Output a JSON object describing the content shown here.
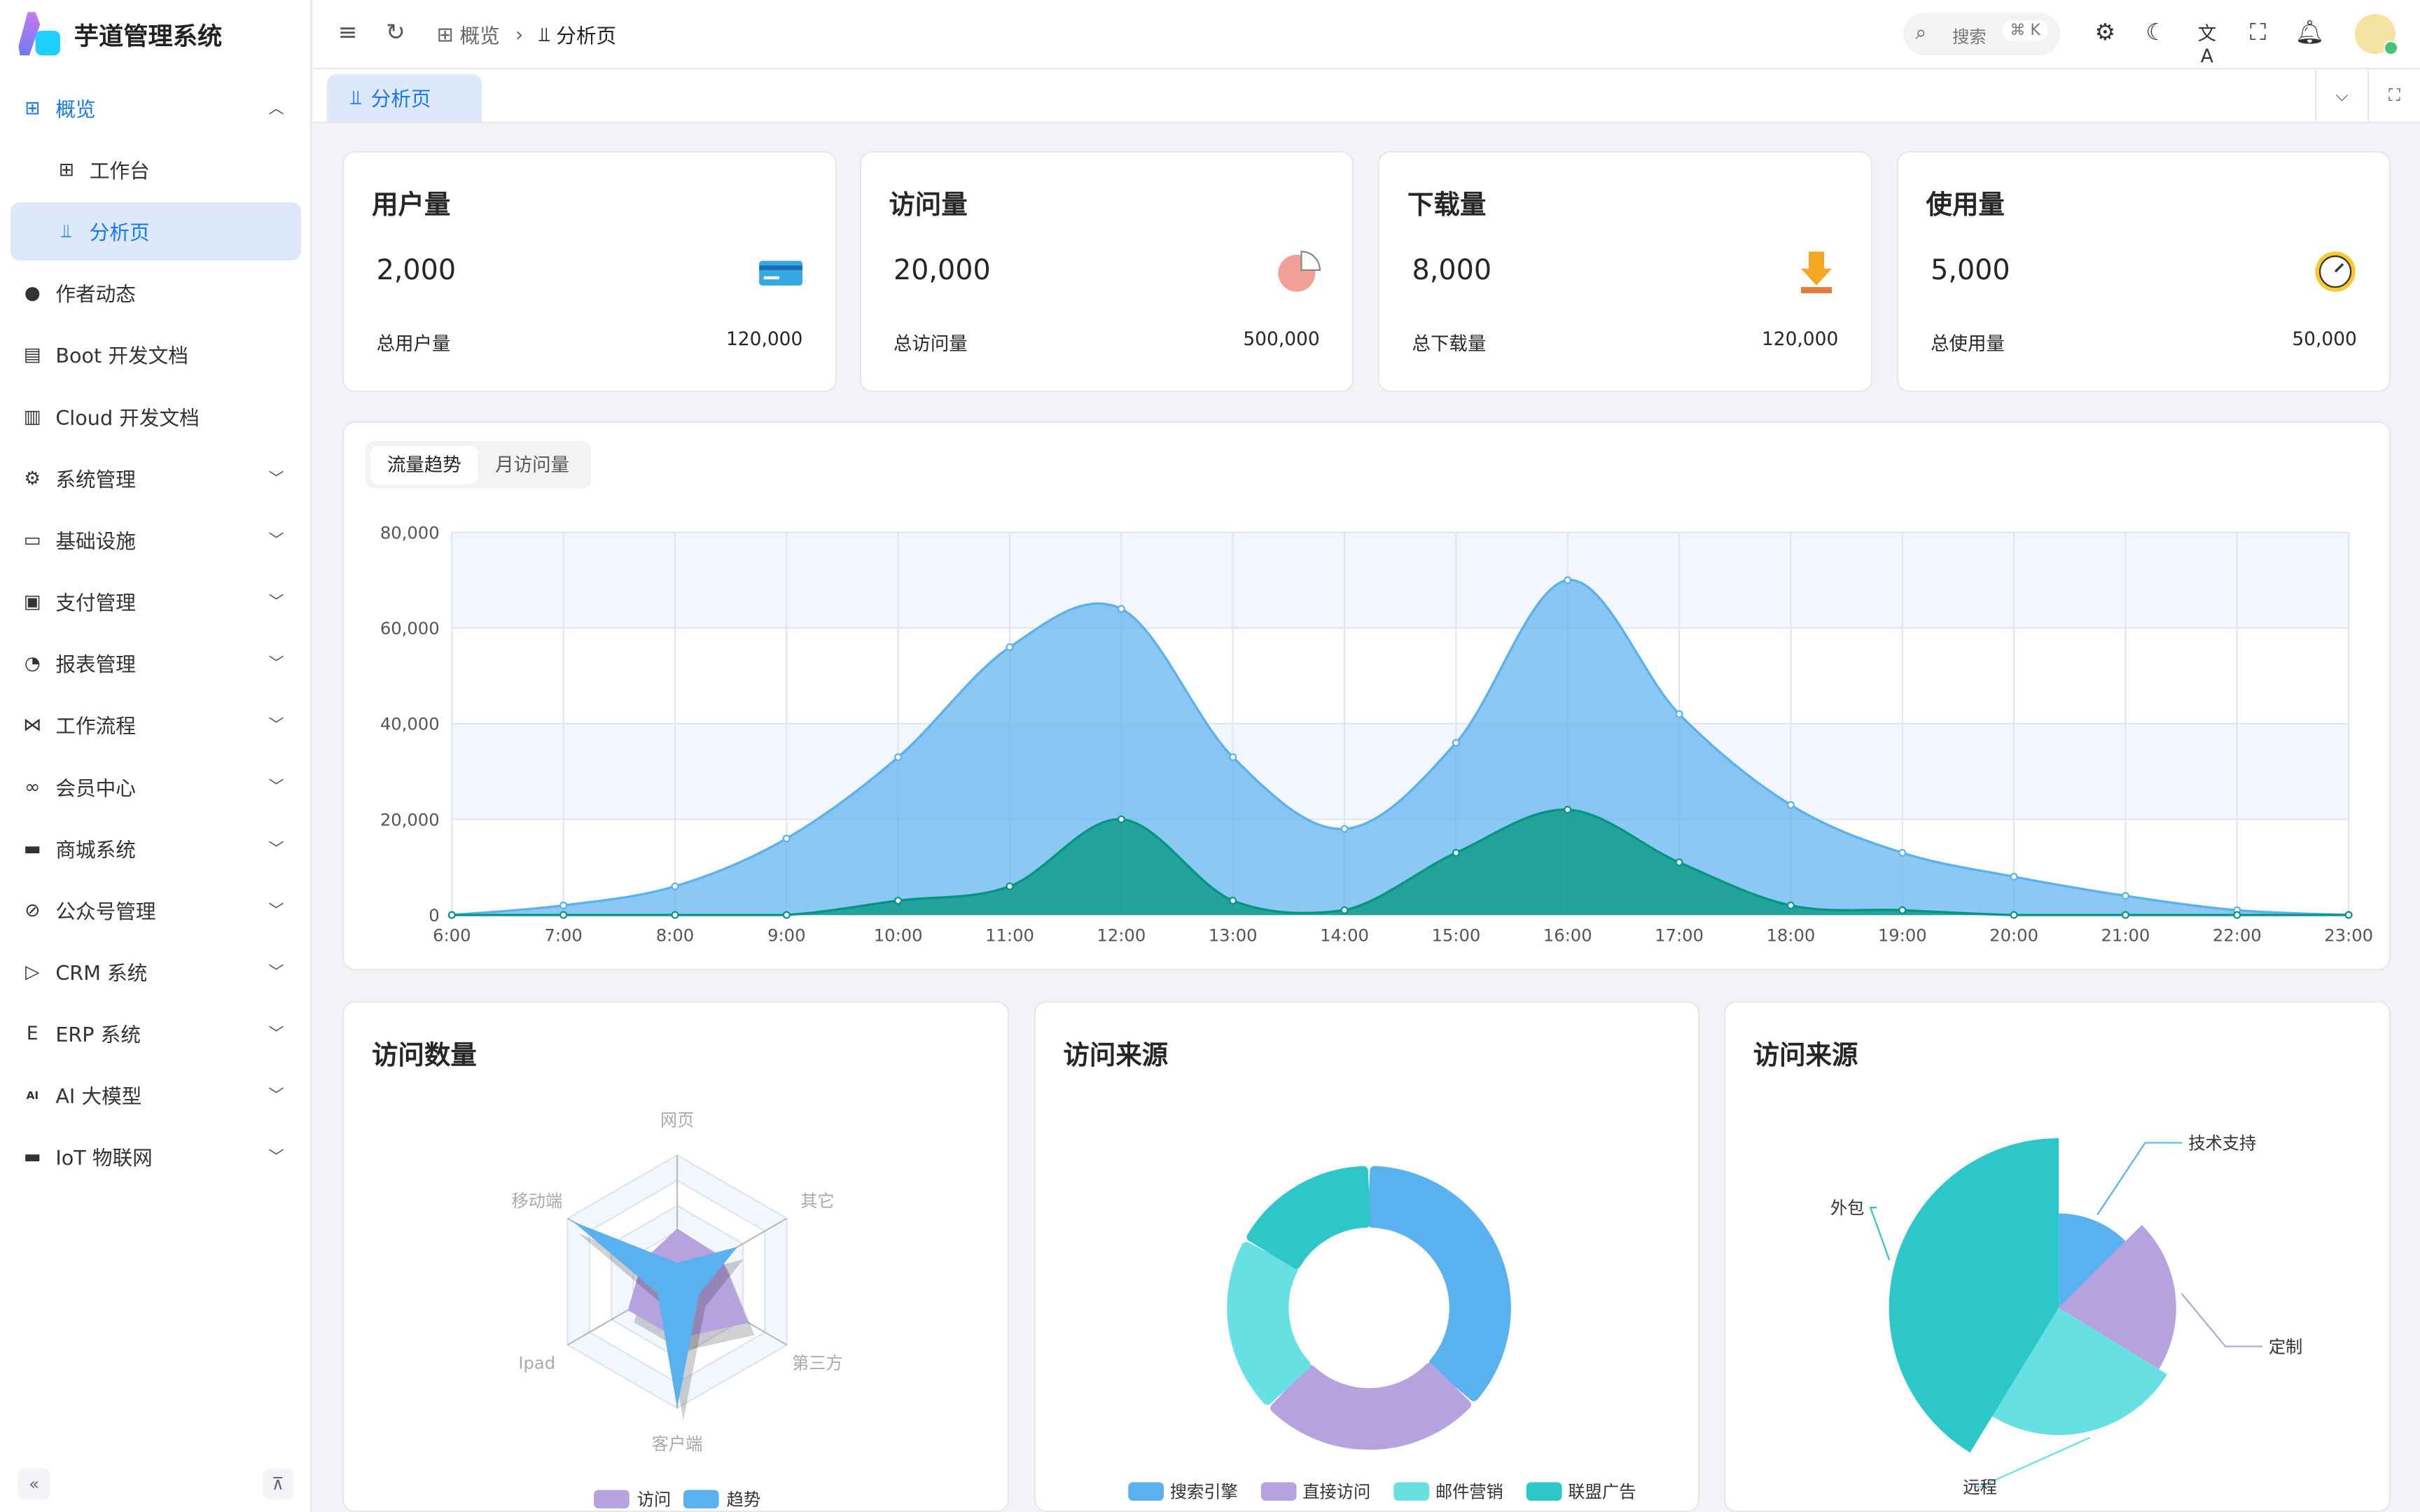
{
  "app": {
    "title": "芋道管理系统"
  },
  "sidebar": {
    "items": [
      {
        "label": "概览",
        "icon": "dashboard-icon",
        "expanded": true
      },
      {
        "label": "工作台",
        "icon": "workspace-icon",
        "sub": true
      },
      {
        "label": "分析页",
        "icon": "chart-icon",
        "sub": true,
        "active": true
      },
      {
        "label": "作者动态",
        "icon": "user-icon"
      },
      {
        "label": "Boot 开发文档",
        "icon": "document-icon"
      },
      {
        "label": "Cloud 开发文档",
        "icon": "documents-icon"
      },
      {
        "label": "系统管理",
        "icon": "gear-icon",
        "chev": true
      },
      {
        "label": "基础设施",
        "icon": "monitor-icon",
        "chev": true
      },
      {
        "label": "支付管理",
        "icon": "payment-icon",
        "chev": true
      },
      {
        "label": "报表管理",
        "icon": "pie-icon",
        "chev": true
      },
      {
        "label": "工作流程",
        "icon": "workflow-icon",
        "chev": true
      },
      {
        "label": "会员中心",
        "icon": "bike-icon",
        "chev": true
      },
      {
        "label": "商城系统",
        "icon": "shop-icon",
        "chev": true
      },
      {
        "label": "公众号管理",
        "icon": "compass-icon",
        "chev": true
      },
      {
        "label": "CRM 系统",
        "icon": "crm-icon",
        "chev": true
      },
      {
        "label": "ERP 系统",
        "icon": "erp-icon",
        "chev": true
      },
      {
        "label": "AI 大模型",
        "icon": "ai-icon",
        "chev": true
      },
      {
        "label": "IoT 物联网",
        "icon": "iot-icon",
        "chev": true
      }
    ]
  },
  "header": {
    "breadcrumb": [
      "概览",
      "分析页"
    ],
    "search_placeholder": "搜索",
    "search_shortcut": "⌘ K"
  },
  "tabs": [
    {
      "label": "分析页",
      "active": true
    }
  ],
  "stats": [
    {
      "title": "用户量",
      "value": "2,000",
      "total_label": "总用户量",
      "total": "120,000",
      "icon": "card-icon"
    },
    {
      "title": "访问量",
      "value": "20,000",
      "total_label": "总访问量",
      "total": "500,000",
      "icon": "pie-chart-icon"
    },
    {
      "title": "下载量",
      "value": "8,000",
      "total_label": "总下载量",
      "total": "120,000",
      "icon": "download-icon"
    },
    {
      "title": "使用量",
      "value": "5,000",
      "total_label": "总使用量",
      "total": "50,000",
      "icon": "clock-icon"
    }
  ],
  "trend": {
    "tabs": [
      "流量趋势",
      "月访问量"
    ],
    "active_tab": 0
  },
  "chart_data": [
    {
      "type": "area",
      "x": [
        "6:00",
        "7:00",
        "8:00",
        "9:00",
        "10:00",
        "11:00",
        "12:00",
        "13:00",
        "14:00",
        "15:00",
        "16:00",
        "17:00",
        "18:00",
        "19:00",
        "20:00",
        "21:00",
        "22:00",
        "23:00"
      ],
      "ylim": [
        0,
        80000
      ],
      "yticks": [
        "0",
        "20,000",
        "40,000",
        "60,000",
        "80,000"
      ],
      "grid": true,
      "series": [
        {
          "values": [
            0,
            2000,
            6000,
            16000,
            33000,
            56000,
            64000,
            33000,
            18000,
            36000,
            70000,
            42000,
            23000,
            13000,
            8000,
            4000,
            1000,
            0
          ],
          "color": "#5ab1ef"
        },
        {
          "values": [
            0,
            0,
            0,
            0,
            3000,
            6000,
            20000,
            3000,
            1000,
            13000,
            22000,
            11000,
            2000,
            1000,
            0,
            0,
            0,
            0
          ],
          "color": "#019680"
        }
      ]
    },
    {
      "type": "radar",
      "title": "访问数量",
      "indicators": [
        "网页",
        "其它",
        "第三方",
        "客户端",
        "Ipad",
        "移动端"
      ],
      "max": 100,
      "series": [
        {
          "name": "访问",
          "values": [
            42,
            40,
            65,
            45,
            45,
            32
          ],
          "color": "#b6a2de"
        },
        {
          "name": "趋势",
          "values": [
            15,
            55,
            20,
            100,
            18,
            95
          ],
          "color": "#5ab1ef"
        }
      ]
    },
    {
      "type": "pie",
      "title": "访问来源",
      "donut": true,
      "series": [
        {
          "name": "搜索引擎",
          "value": 1048,
          "color": "#5ab1ef"
        },
        {
          "name": "直接访问",
          "value": 735,
          "color": "#b6a2de"
        },
        {
          "name": "邮件营销",
          "value": 580,
          "color": "#67e0e3"
        },
        {
          "name": "联盟广告",
          "value": 484,
          "color": "#2ec7c9"
        }
      ]
    },
    {
      "type": "pie",
      "title": "访问来源",
      "rose": true,
      "series": [
        {
          "name": "技术支持",
          "value": 10,
          "color": "#5ab1ef"
        },
        {
          "name": "定制",
          "value": 17,
          "color": "#b6a2de"
        },
        {
          "name": "远程",
          "value": 20,
          "color": "#67e0e3"
        },
        {
          "name": "外包",
          "value": 33,
          "color": "#2ec7c9"
        }
      ]
    }
  ]
}
